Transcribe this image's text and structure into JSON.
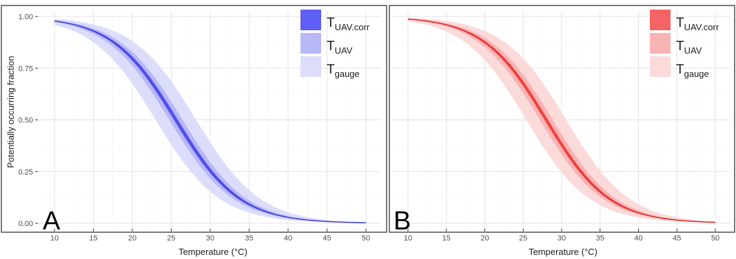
{
  "figure": {
    "ylabel": "Potentially occurring fraction",
    "xlabel_text": "Temperature  (",
    "xlabel_unit": "°C",
    "xlabel_close": ")"
  },
  "chart_data": [
    {
      "type": "area",
      "panel_label": "A",
      "xlim": [
        10,
        50
      ],
      "ylim": [
        0,
        1
      ],
      "x_ticks": [
        "10",
        "15",
        "20",
        "25",
        "30",
        "35",
        "40",
        "45",
        "50"
      ],
      "y_ticks": [
        "0.00",
        "0.25",
        "0.50",
        "0.75",
        "1.00"
      ],
      "grid": true,
      "legend_position": "top-right",
      "colors": {
        "line": "#3b3bd6",
        "uav_corr": "#5f5ff5",
        "uav": "#b8b8f8",
        "gauge": "#dcdcfb"
      },
      "series": [
        {
          "name_base": "T",
          "name_sub": "UAV.corr",
          "center": 25.6,
          "width": 0.28
        },
        {
          "name_base": "T",
          "name_sub": "UAV",
          "center": 25.6,
          "width": 0.85
        },
        {
          "name_base": "T",
          "name_sub": "gauge",
          "center": 25.6,
          "width": 2.6
        }
      ],
      "curve": {
        "x": [
          10,
          15,
          20,
          25,
          30,
          35,
          40,
          45,
          50
        ],
        "y": [
          1.0,
          0.97,
          0.82,
          0.55,
          0.23,
          0.06,
          0.01,
          0.0,
          0.0
        ]
      }
    },
    {
      "type": "area",
      "panel_label": "B",
      "xlim": [
        10,
        50
      ],
      "ylim": [
        0,
        1
      ],
      "x_ticks": [
        "10",
        "15",
        "20",
        "25",
        "30",
        "35",
        "40",
        "45",
        "50"
      ],
      "y_ticks": [
        "0.00",
        "0.25",
        "0.50",
        "0.75",
        "1.00"
      ],
      "grid": true,
      "legend_position": "top-right",
      "colors": {
        "line": "#e02020",
        "uav_corr": "#f46464",
        "uav": "#f8b4b4",
        "gauge": "#fbdada"
      },
      "series": [
        {
          "name_base": "T",
          "name_sub": "UAV.corr",
          "center": 28.0,
          "width": 0.28
        },
        {
          "name_base": "T",
          "name_sub": "UAV",
          "center": 28.0,
          "width": 0.85
        },
        {
          "name_base": "T",
          "name_sub": "gauge",
          "center": 28.0,
          "width": 2.6
        }
      ],
      "curve": {
        "x": [
          10,
          15,
          20,
          25,
          30,
          35,
          40,
          45,
          50
        ],
        "y": [
          1.0,
          0.97,
          0.88,
          0.66,
          0.36,
          0.12,
          0.03,
          0.0,
          0.0
        ]
      }
    }
  ]
}
